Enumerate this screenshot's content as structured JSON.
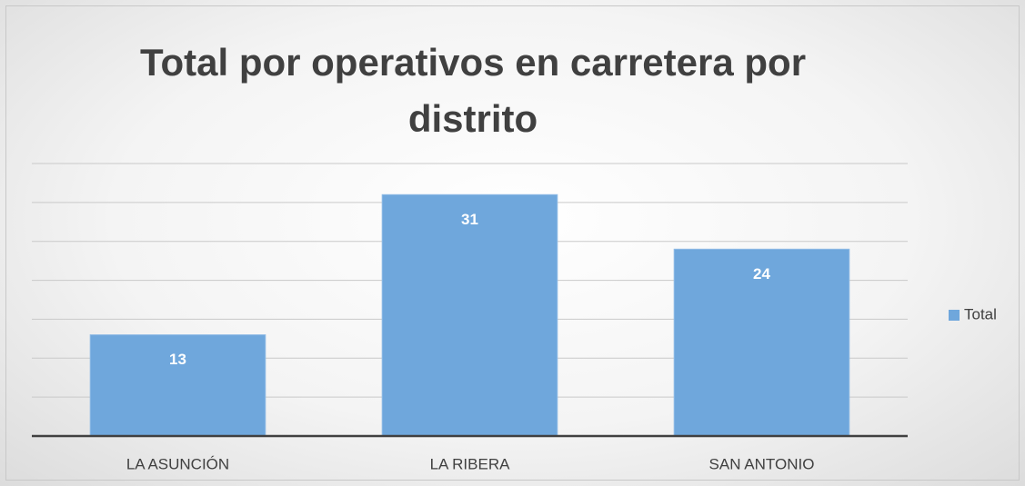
{
  "chart_data": {
    "type": "bar",
    "title": "Total por operativos en carretera por distrito",
    "categories": [
      "LA ASUNCIÓN",
      "LA RIBERA",
      "SAN ANTONIO"
    ],
    "series": [
      {
        "name": "Total",
        "color": "#6fa7dc",
        "values": [
          13,
          31,
          24
        ]
      }
    ],
    "ylim": [
      0,
      35
    ],
    "yticks": [
      0,
      5,
      10,
      15,
      20,
      25,
      30,
      35
    ],
    "grid": true,
    "legend": "right"
  }
}
